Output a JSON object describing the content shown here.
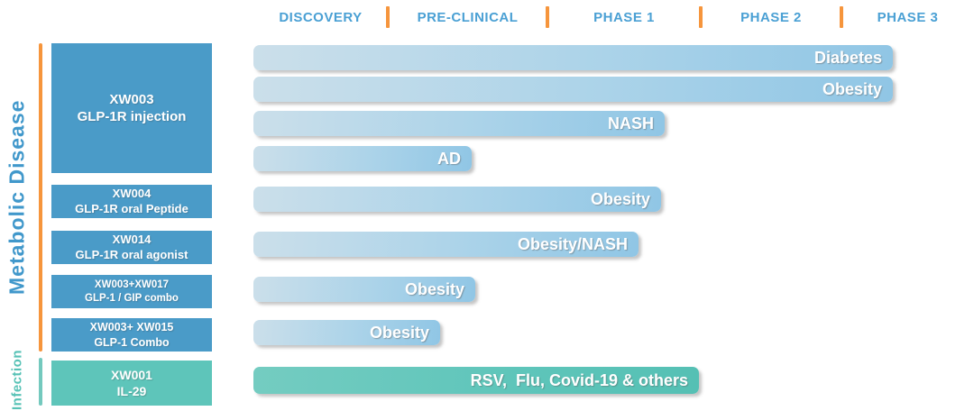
{
  "header": {
    "phases": [
      "DISCOVERY",
      "PRE-CLINICAL",
      "PHASE 1",
      "PHASE 2",
      "PHASE 3"
    ]
  },
  "categories": {
    "metabolic": "Metabolic Disease",
    "infection": "Infection"
  },
  "programs": [
    {
      "code": "XW003",
      "desc": "GLP-1R injection",
      "category": "Metabolic Disease"
    },
    {
      "code": "XW004",
      "desc": "GLP-1R oral Peptide",
      "category": "Metabolic Disease"
    },
    {
      "code": "XW014",
      "desc": "GLP-1R oral agonist",
      "category": "Metabolic Disease"
    },
    {
      "code": "XW003+XW017",
      "desc": "GLP-1 / GIP combo",
      "category": "Metabolic Disease"
    },
    {
      "code": "XW003+ XW015",
      "desc": "GLP-1 Combo",
      "category": "Metabolic Disease"
    },
    {
      "code": "XW001",
      "desc": "IL-29",
      "category": "Infection"
    }
  ],
  "bars": [
    {
      "label": "Diabetes"
    },
    {
      "label": "Obesity"
    },
    {
      "label": "NASH"
    },
    {
      "label": "AD"
    },
    {
      "label": "Obesity"
    },
    {
      "label": "Obesity/NASH"
    },
    {
      "label": "Obesity"
    },
    {
      "label": "Obesity"
    },
    {
      "label": "RSV,  Flu, Covid-19 & others"
    }
  ],
  "colors": {
    "header_blue": "#4aa0d4",
    "divider_orange": "#f6953c",
    "program_box_blue": "#4a9bc8",
    "bar_gradient_start": "#cbdfea",
    "bar_gradient_end": "#90c6e5",
    "infection_teal": "#5ec5ba",
    "metabolic_label_blue": "#4198cb",
    "infection_label_teal": "#57c2b6"
  },
  "chart_data": {
    "type": "bar",
    "subtype": "pipeline-gantt",
    "title": "Drug development pipeline by phase",
    "columns": [
      "DISCOVERY",
      "PRE-CLINICAL",
      "PHASE 1",
      "PHASE 2",
      "PHASE 3"
    ],
    "phase_scale_note": "values below are end positions on a 0-5 phase axis (0=start Discovery, 1=start Pre-clinical, 2=start Phase 1, 3=start Phase 2, 4=start Phase 3)",
    "rows": [
      {
        "program": "XW003 GLP-1R injection",
        "indication": "Diabetes",
        "end_phase_position": 4.4
      },
      {
        "program": "XW003 GLP-1R injection",
        "indication": "Obesity",
        "end_phase_position": 4.4
      },
      {
        "program": "XW003 GLP-1R injection",
        "indication": "NASH",
        "end_phase_position": 2.76
      },
      {
        "program": "XW003 GLP-1R injection",
        "indication": "AD",
        "end_phase_position": 1.53
      },
      {
        "program": "XW004 GLP-1R oral Peptide",
        "indication": "Obesity",
        "end_phase_position": 2.74
      },
      {
        "program": "XW014 GLP-1R oral agonist",
        "indication": "Obesity/NASH",
        "end_phase_position": 2.59
      },
      {
        "program": "XW003+XW017 GLP-1 / GIP combo",
        "indication": "Obesity",
        "end_phase_position": 1.55
      },
      {
        "program": "XW003+ XW015 GLP-1 Combo",
        "indication": "Obesity",
        "end_phase_position": 1.33
      },
      {
        "program": "XW001 IL-29",
        "indication": "RSV,  Flu, Covid-19 & others",
        "end_phase_position": 3.0
      }
    ],
    "legend_position": "none",
    "grid": false
  }
}
